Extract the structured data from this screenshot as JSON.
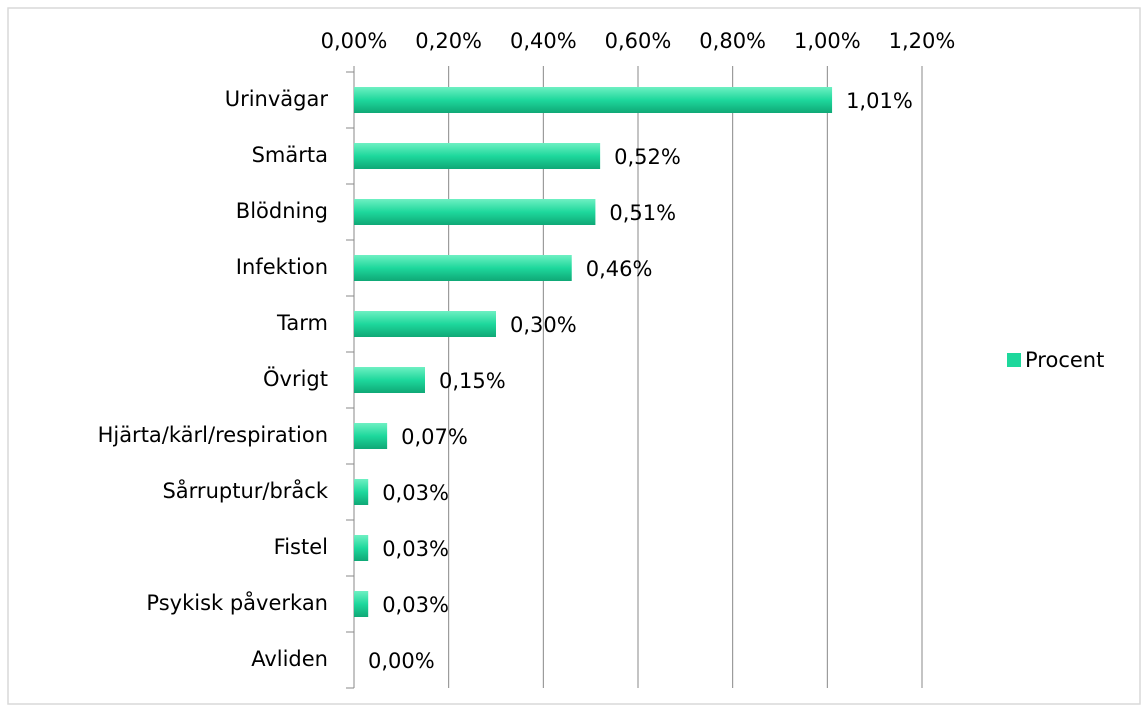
{
  "chart_data": {
    "type": "bar",
    "orientation": "horizontal",
    "categories": [
      "Urinvägar",
      "Smärta",
      "Blödning",
      "Infektion",
      "Tarm",
      "Övrigt",
      "Hjärta/kärl/respiration",
      "Sårruptur/bråck",
      "Fistel",
      "Psykisk påverkan",
      "Avliden"
    ],
    "series": [
      {
        "name": "Procent",
        "color": "#1ed89c",
        "values": [
          1.01,
          0.52,
          0.51,
          0.46,
          0.3,
          0.15,
          0.07,
          0.03,
          0.03,
          0.03,
          0.0
        ],
        "value_labels": [
          "1,01%",
          "0,52%",
          "0,51%",
          "0,46%",
          "0,30%",
          "0,15%",
          "0,07%",
          "0,03%",
          "0,03%",
          "0,03%",
          "0,00%"
        ]
      }
    ],
    "xlim": [
      0,
      1.2
    ],
    "xticks": [
      {
        "value": 0,
        "label": "0,00%"
      },
      {
        "value": 0.2,
        "label": "0,20%"
      },
      {
        "value": 0.4,
        "label": "0,40%"
      },
      {
        "value": 0.6,
        "label": "0,60%"
      },
      {
        "value": 0.8,
        "label": "0,80%"
      },
      {
        "value": 1.0,
        "label": "1,00%"
      },
      {
        "value": 1.2,
        "label": "1,20%"
      }
    ],
    "grid": true,
    "legend": "right"
  }
}
